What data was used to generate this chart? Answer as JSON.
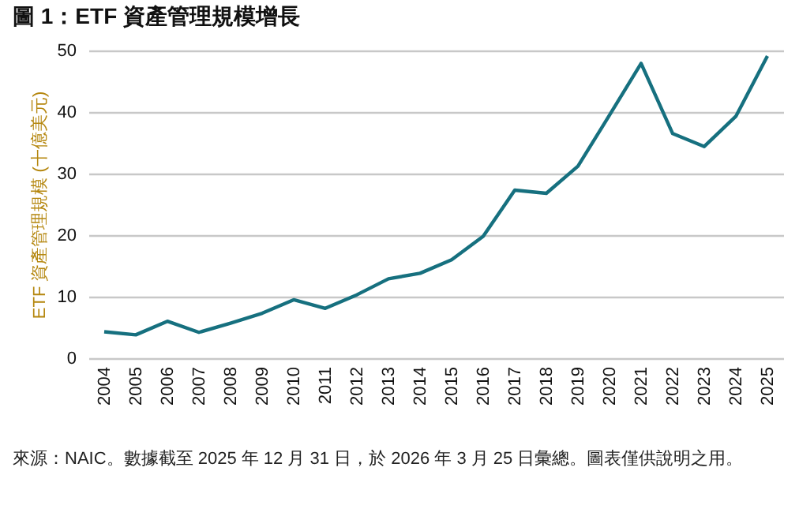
{
  "chart_data": {
    "type": "line",
    "title": "圖 1：ETF 資產管理規模增長",
    "ylabel": "ETF 資產管理規模 (十億美元)",
    "categories": [
      "2004",
      "2005",
      "2006",
      "2007",
      "2008",
      "2009",
      "2010",
      "2011",
      "2012",
      "2013",
      "2014",
      "2015",
      "2016",
      "2017",
      "2018",
      "2019",
      "2020",
      "2021",
      "2022",
      "2023",
      "2024",
      "2025"
    ],
    "series": [
      {
        "color": "#16707f",
        "values": [
          4.3,
          3.8,
          6.0,
          4.2,
          5.7,
          7.3,
          9.5,
          8.1,
          10.3,
          12.9,
          13.8,
          16.0,
          19.8,
          27.3,
          26.8,
          31.2,
          39.5,
          47.9,
          36.5,
          34.4,
          39.3,
          49.1
        ]
      }
    ],
    "ylim": [
      0,
      50
    ],
    "yticks": [
      0,
      10,
      20,
      30,
      40,
      50
    ],
    "grid": "y",
    "marker": "none",
    "line_style": "solid",
    "annotations": [
      "來源：NAIC。數據截至 2025 年 12 月 31 日，於 2026 年 3 月 25 日彙總。圖表僅供說明之用。"
    ]
  }
}
